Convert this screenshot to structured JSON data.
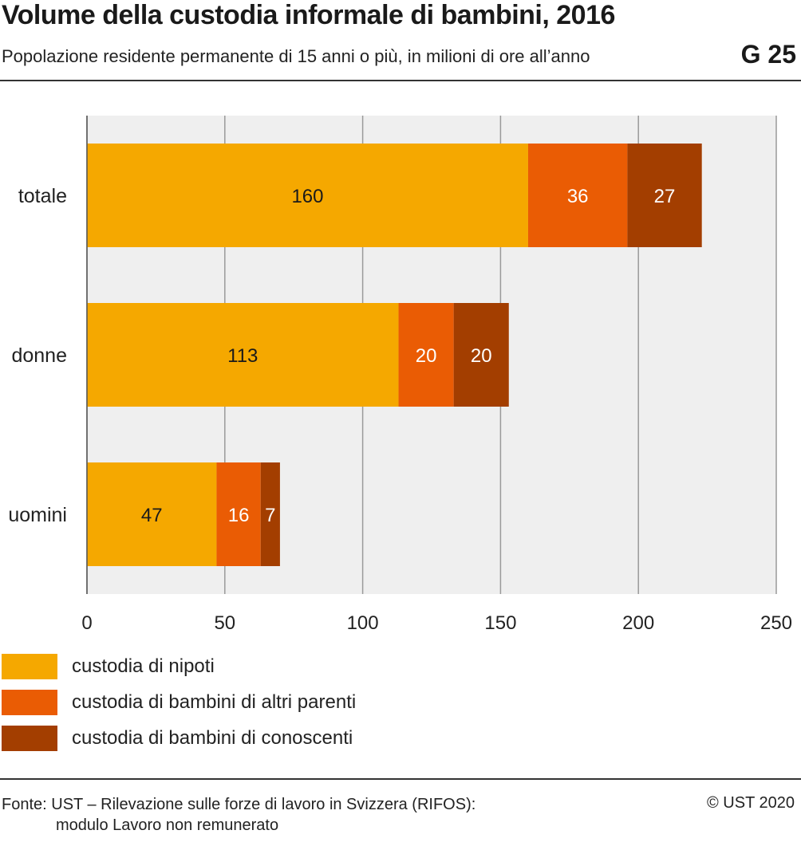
{
  "header": {
    "title": "Volume della custodia informale di bambini, 2016",
    "subtitle": "Popolazione residente permanente di 15 anni o più, in milioni di ore all’anno",
    "graph_number": "G 25"
  },
  "chart_data": {
    "type": "bar",
    "orientation": "horizontal",
    "stacked": true,
    "categories": [
      "totale",
      "donne",
      "uomini"
    ],
    "series": [
      {
        "name": "custodia di nipoti",
        "values": [
          160,
          113,
          47
        ],
        "color": "#f5a800",
        "label_color": "#1a1a1a"
      },
      {
        "name": "custodia di bambini di altri parenti",
        "values": [
          36,
          20,
          16
        ],
        "color": "#ea5c04",
        "label_color": "#ffffff"
      },
      {
        "name": "custodia di bambini di conoscenti",
        "values": [
          27,
          20,
          7
        ],
        "color": "#a33e00",
        "label_color": "#ffffff"
      }
    ],
    "data_labels": [
      [
        "160",
        "113",
        "47"
      ],
      [
        "36",
        "20",
        "16"
      ],
      [
        "27",
        "20",
        "7"
      ]
    ],
    "xlim": [
      0,
      250
    ],
    "xticks": [
      0,
      50,
      100,
      150,
      200,
      250
    ],
    "xtick_labels": [
      "0",
      "50",
      "100",
      "150",
      "200",
      "250"
    ],
    "grid": true,
    "legend_position": "bottom-left",
    "plot_background": "#efefef"
  },
  "legend": {
    "items": [
      {
        "label": "custodia di nipoti",
        "color": "#f5a800"
      },
      {
        "label": "custodia di bambini di altri parenti",
        "color": "#ea5c04"
      },
      {
        "label": "custodia di bambini di conoscenti",
        "color": "#a33e00"
      }
    ]
  },
  "footer": {
    "source_line1": "Fonte: UST – Rilevazione sulle forze di lavoro in Svizzera (RIFOS):",
    "source_line2": "modulo Lavoro non remunerato",
    "copyright": "© UST 2020"
  }
}
